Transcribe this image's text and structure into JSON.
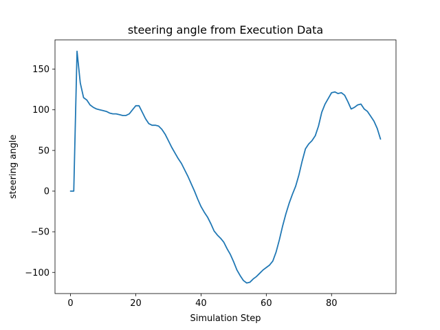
{
  "chart_data": {
    "type": "line",
    "title": "steering angle from Execution Data",
    "xlabel": "Simulation Step",
    "ylabel": "steering angle",
    "xlim": [
      -4.75,
      99.75
    ],
    "ylim": [
      -126,
      186
    ],
    "xticks": [
      0,
      20,
      40,
      60,
      80
    ],
    "yticks": [
      -100,
      -50,
      0,
      50,
      100,
      150
    ],
    "ytick_labels": [
      "−100",
      "−50",
      "0",
      "50",
      "100",
      "150"
    ],
    "grid": false,
    "series": [
      {
        "color": "#1f77b4",
        "x": [
          0,
          1,
          2,
          3,
          4,
          5,
          6,
          7,
          8,
          9,
          10,
          11,
          12,
          13,
          14,
          15,
          16,
          17,
          18,
          19,
          20,
          21,
          22,
          23,
          24,
          25,
          26,
          27,
          28,
          29,
          30,
          31,
          32,
          33,
          34,
          35,
          36,
          37,
          38,
          39,
          40,
          41,
          42,
          43,
          44,
          45,
          46,
          47,
          48,
          49,
          50,
          51,
          52,
          53,
          54,
          55,
          56,
          57,
          58,
          59,
          60,
          61,
          62,
          63,
          64,
          65,
          66,
          67,
          68,
          69,
          70,
          71,
          72,
          73,
          74,
          75,
          76,
          77,
          78,
          79,
          80,
          81,
          82,
          83,
          84,
          85,
          86,
          87,
          88,
          89,
          90,
          91,
          92,
          93,
          94,
          95
        ],
        "y": [
          0,
          0,
          172,
          133,
          115,
          112,
          106,
          103,
          101,
          100,
          99,
          98,
          96,
          95,
          95,
          94,
          93,
          93,
          95,
          100,
          105,
          105,
          97,
          89,
          83,
          81,
          81,
          80,
          76,
          70,
          62,
          54,
          47,
          40,
          34,
          26,
          18,
          9,
          0,
          -10,
          -19,
          -26,
          -32,
          -40,
          -49,
          -54,
          -58,
          -63,
          -71,
          -78,
          -87,
          -97,
          -104,
          -110,
          -113,
          -112,
          -108,
          -105,
          -101,
          -97,
          -94,
          -91,
          -86,
          -75,
          -60,
          -43,
          -28,
          -15,
          -4,
          6,
          20,
          37,
          52,
          58,
          62,
          68,
          80,
          97,
          107,
          114,
          121,
          122,
          120,
          121,
          118,
          110,
          101,
          103,
          106,
          107,
          101,
          98,
          92,
          86,
          77,
          64
        ]
      }
    ]
  }
}
